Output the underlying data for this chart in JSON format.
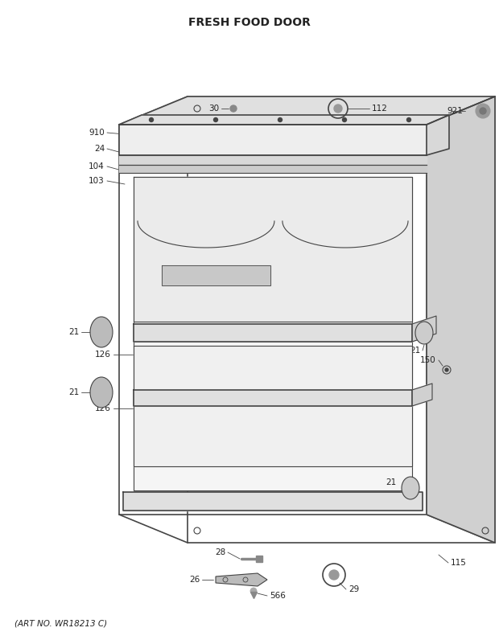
{
  "title": "FRESH FOOD DOOR",
  "footer": "(ART NO. WR18213 C)",
  "bg_color": "#ffffff",
  "line_color": "#444444",
  "text_color": "#222222",
  "title_fontsize": 10,
  "label_fontsize": 7.5,
  "footer_fontsize": 7.5
}
